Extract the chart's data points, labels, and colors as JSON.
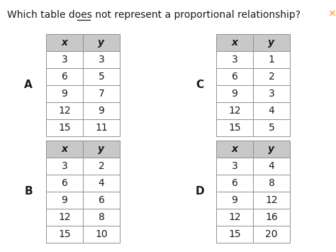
{
  "title": "Which table does not represent a proportional relationship?",
  "background_color": "#ffffff",
  "header_fill": "#c8c8c8",
  "cell_fill": "#ffffff",
  "border_color": "#909090",
  "tables": [
    {
      "label": "A",
      "x": [
        3,
        6,
        9,
        12,
        15
      ],
      "y": [
        3,
        5,
        7,
        9,
        11
      ]
    },
    {
      "label": "C",
      "x": [
        3,
        6,
        9,
        12,
        15
      ],
      "y": [
        1,
        2,
        3,
        4,
        5
      ]
    },
    {
      "label": "B",
      "x": [
        3,
        6,
        9,
        12,
        15
      ],
      "y": [
        2,
        4,
        6,
        8,
        10
      ]
    },
    {
      "label": "D",
      "x": [
        3,
        6,
        9,
        12,
        15
      ],
      "y": [
        4,
        8,
        12,
        16,
        20
      ]
    }
  ],
  "x_symbol": "x",
  "y_symbol": "y",
  "close_color": "#ff8c00",
  "title_fontsize": 10.0,
  "label_fontsize": 11,
  "header_fontsize": 10,
  "cell_fontsize": 10
}
